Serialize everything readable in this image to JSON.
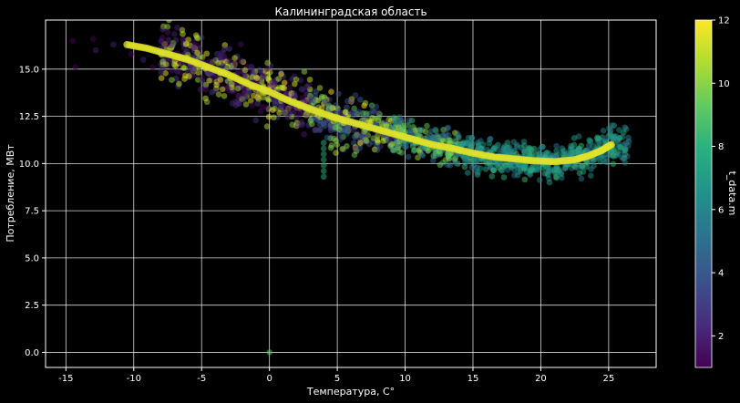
{
  "chart_data": {
    "type": "scatter",
    "title": "Калининградская область",
    "xlabel": "Температура, C°",
    "ylabel": "Потребление, МВт",
    "xlim": [
      -16.5,
      28.5
    ],
    "ylim": [
      -0.8,
      17.6
    ],
    "xticks": [
      -15,
      -10,
      -5,
      0,
      5,
      10,
      15,
      20,
      25
    ],
    "yticks": [
      0.0,
      2.5,
      5.0,
      7.5,
      10.0,
      12.5,
      15.0
    ],
    "ytick_labels": [
      "0.0",
      "2.5",
      "5.0",
      "7.5",
      "10.0",
      "12.5",
      "15.0"
    ],
    "grid": true,
    "colorbar": {
      "label": "t_data.m",
      "colormap": "viridis",
      "range": [
        1,
        12
      ],
      "ticks": [
        2,
        4,
        6,
        8,
        10,
        12
      ]
    },
    "marker_alpha": 0.5,
    "series": [
      {
        "kind": "observed",
        "points": [
          [
            -14.5,
            16.5,
            1
          ],
          [
            -13,
            16.6,
            1
          ],
          [
            -14.3,
            15.1,
            1
          ],
          [
            -12.8,
            16.0,
            2
          ],
          [
            -11.5,
            16.3,
            2
          ],
          [
            -10.2,
            15.8,
            1
          ],
          [
            -9.3,
            15.5,
            2
          ],
          [
            -8.6,
            15.1,
            1
          ],
          [
            -7.8,
            15.6,
            2
          ],
          [
            -6.5,
            14.8,
            1
          ],
          [
            -5.8,
            15.2,
            2
          ],
          [
            -4.2,
            14.6,
            1
          ],
          [
            -3.1,
            14.4,
            2
          ],
          [
            -2.0,
            14.1,
            1
          ],
          [
            -1.2,
            14.7,
            3
          ],
          [
            0.5,
            14.4,
            2
          ],
          [
            1.5,
            13.7,
            1
          ],
          [
            2.2,
            13.1,
            1
          ],
          [
            3.4,
            13.4,
            2
          ],
          [
            -0.5,
            13.0,
            1
          ],
          [
            0.0,
            0.0,
            9
          ],
          [
            4.0,
            9.3,
            8
          ],
          [
            4.0,
            9.6,
            8
          ],
          [
            4.0,
            9.9,
            8
          ],
          [
            4.0,
            10.2,
            8
          ],
          [
            4.0,
            10.5,
            8
          ],
          [
            4.0,
            10.8,
            8
          ],
          [
            4.0,
            11.1,
            8
          ]
        ]
      },
      {
        "kind": "model",
        "color_value": 11.5,
        "points": [
          [
            -10.5,
            16.3
          ],
          [
            -9,
            16.1
          ],
          [
            -7.5,
            15.8
          ],
          [
            -6,
            15.5
          ],
          [
            -4.5,
            15.1
          ],
          [
            -3,
            14.7
          ],
          [
            -1.5,
            14.2
          ],
          [
            0,
            13.8
          ],
          [
            1.5,
            13.3
          ],
          [
            3,
            12.9
          ],
          [
            4.5,
            12.5
          ],
          [
            6,
            12.2
          ],
          [
            7.5,
            11.9
          ],
          [
            9,
            11.6
          ],
          [
            10.5,
            11.3
          ],
          [
            12,
            11.0
          ],
          [
            13.5,
            10.8
          ],
          [
            15,
            10.55
          ],
          [
            16.5,
            10.35
          ],
          [
            18,
            10.25
          ],
          [
            19.5,
            10.15
          ],
          [
            21,
            10.1
          ],
          [
            22.5,
            10.2
          ],
          [
            23.5,
            10.4
          ],
          [
            24.5,
            10.7
          ],
          [
            25.2,
            11.0
          ]
        ]
      }
    ]
  }
}
